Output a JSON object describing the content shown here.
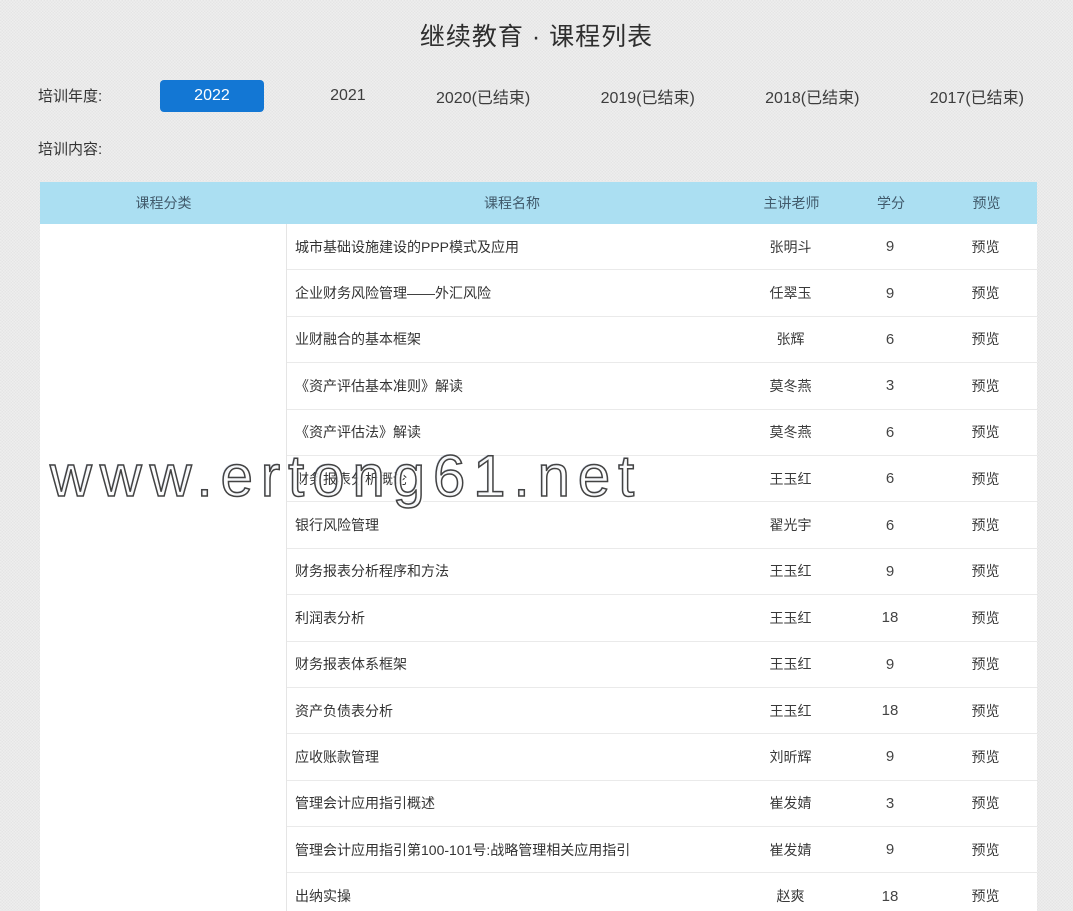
{
  "title": "继续教育 · 课程列表",
  "filters": {
    "year_label": "培训年度:",
    "content_label": "培训内容:",
    "years": [
      {
        "label": "2022",
        "selected": true
      },
      {
        "label": "2021",
        "selected": false
      },
      {
        "label": "2020(已结束)",
        "selected": false
      },
      {
        "label": "2019(已结束)",
        "selected": false
      },
      {
        "label": "2018(已结束)",
        "selected": false
      },
      {
        "label": "2017(已结束)",
        "selected": false
      }
    ]
  },
  "colors": {
    "accent_blue": "#1377d4",
    "table_header_blue": "#abdff2",
    "page_background": "#ededed"
  },
  "watermark": "www.ertong61.net",
  "table": {
    "headers": [
      "课程分类",
      "课程名称",
      "主讲老师",
      "学分",
      "预览"
    ],
    "category_value": "",
    "rows": [
      {
        "name": "城市基础设施建设的PPP模式及应用",
        "teacher": "张明斗",
        "credits": "9",
        "action": "预览"
      },
      {
        "name": "企业财务风险管理——外汇风险",
        "teacher": "任翠玉",
        "credits": "9",
        "action": "预览"
      },
      {
        "name": "业财融合的基本框架",
        "teacher": "张辉",
        "credits": "6",
        "action": "预览"
      },
      {
        "name": "《资产评估基本准则》解读",
        "teacher": "莫冬燕",
        "credits": "3",
        "action": "预览"
      },
      {
        "name": "《资产评估法》解读",
        "teacher": "莫冬燕",
        "credits": "6",
        "action": "预览"
      },
      {
        "name": "财务报表分析概论",
        "teacher": "王玉红",
        "credits": "6",
        "action": "预览"
      },
      {
        "name": "银行风险管理",
        "teacher": "翟光宇",
        "credits": "6",
        "action": "预览"
      },
      {
        "name": "财务报表分析程序和方法",
        "teacher": "王玉红",
        "credits": "9",
        "action": "预览"
      },
      {
        "name": "利润表分析",
        "teacher": "王玉红",
        "credits": "18",
        "action": "预览"
      },
      {
        "name": "财务报表体系框架",
        "teacher": "王玉红",
        "credits": "9",
        "action": "预览"
      },
      {
        "name": "资产负债表分析",
        "teacher": "王玉红",
        "credits": "18",
        "action": "预览"
      },
      {
        "name": "应收账款管理",
        "teacher": "刘昕辉",
        "credits": "9",
        "action": "预览"
      },
      {
        "name": "管理会计应用指引概述",
        "teacher": "崔发婧",
        "credits": "3",
        "action": "预览"
      },
      {
        "name": "管理会计应用指引第100-101号:战略管理相关应用指引",
        "teacher": "崔发婧",
        "credits": "9",
        "action": "预览"
      },
      {
        "name": "出纳实操",
        "teacher": "赵爽",
        "credits": "18",
        "action": "预览"
      }
    ]
  }
}
